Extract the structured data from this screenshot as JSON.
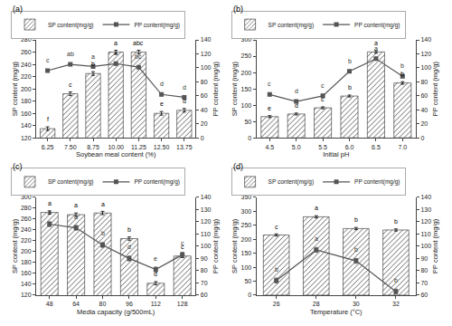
{
  "chart_data": [
    {
      "type": "bar",
      "title": "(a)",
      "xlabel": "Soybean meal content (%)",
      "ylabel": "SP content (mg/g)",
      "y2label": "PP content (mg/g)",
      "categories": [
        "6.25",
        "7.50",
        "8.75",
        "10.00",
        "11.25",
        "12.50",
        "13.75"
      ],
      "series": [
        {
          "name": "SP content(mg/g)",
          "type": "bar",
          "color": "#d9d9d9",
          "values": [
            135,
            192,
            225,
            260,
            260,
            160,
            165
          ],
          "errors": [
            3,
            3,
            3,
            3,
            3,
            3,
            3
          ],
          "annotations": [
            "f",
            "c",
            "b",
            "a",
            "abc",
            "e",
            "d"
          ]
        },
        {
          "name": "PP content(mg/g)",
          "type": "line",
          "axis": "y2",
          "color": "#555555",
          "marker": "square",
          "values": [
            96,
            105,
            102,
            106,
            101,
            62,
            58
          ],
          "errors": [
            2,
            2,
            2,
            2,
            2,
            2,
            2
          ],
          "annotations": [
            "c",
            "ab",
            "a",
            "a",
            "bc",
            "d",
            "d"
          ]
        }
      ],
      "ylim": [
        120,
        280
      ],
      "yticks": [
        120,
        140,
        160,
        180,
        200,
        220,
        240,
        260,
        280
      ],
      "y2lim": [
        0,
        140
      ],
      "y2ticks": [
        0,
        20,
        40,
        60,
        80,
        100,
        120,
        140
      ],
      "legend": "upper left",
      "grid": false
    },
    {
      "type": "bar",
      "title": "(b)",
      "xlabel": "Initial pH",
      "ylabel": "SP content (mg/g)",
      "y2label": "PP content (mg/g)",
      "categories": [
        "4.5",
        "5.0",
        "5.5",
        "6.0",
        "6.5",
        "7.0"
      ],
      "series": [
        {
          "name": "SP content(mg/g)",
          "type": "bar",
          "color": "#d9d9d9",
          "values": [
            65,
            73,
            92,
            128,
            263,
            168
          ],
          "errors": [
            3,
            3,
            3,
            3,
            4,
            4
          ],
          "annotations": [
            "e",
            "d",
            "c",
            "b",
            "a",
            "b"
          ]
        },
        {
          "name": "PP content(mg/g)",
          "type": "line",
          "axis": "y2",
          "color": "#555555",
          "marker": "square",
          "values": [
            62,
            52,
            60,
            95,
            113,
            88
          ],
          "errors": [
            2,
            2,
            2,
            2,
            2,
            2
          ],
          "annotations": [
            "c",
            "d",
            "c",
            "b",
            "a",
            "b"
          ]
        }
      ],
      "ylim": [
        0,
        300
      ],
      "yticks": [
        0,
        50,
        100,
        150,
        200,
        250,
        300
      ],
      "y2lim": [
        0,
        140
      ],
      "y2ticks": [
        0,
        20,
        40,
        60,
        80,
        100,
        120,
        140
      ],
      "legend": "upper left",
      "grid": false
    },
    {
      "type": "bar",
      "title": "(c)",
      "xlabel": "Media capacity (g/500mL)",
      "ylabel": "SP content (mg/g)",
      "y2label": "PP content (mg/g)",
      "categories": [
        "48",
        "64",
        "80",
        "96",
        "112",
        "128"
      ],
      "series": [
        {
          "name": "SP content(mg/g)",
          "type": "bar",
          "color": "#d9d9d9",
          "values": [
            272,
            268,
            271,
            224,
            142,
            192
          ],
          "errors": [
            3,
            3,
            3,
            3,
            3,
            3
          ],
          "annotations": [
            "a",
            "a",
            "a",
            "b",
            "d",
            "c"
          ]
        },
        {
          "name": "PP content(mg/g)",
          "type": "line",
          "axis": "y2",
          "color": "#555555",
          "marker": "square",
          "values": [
            118,
            115,
            101,
            90,
            81,
            93
          ],
          "errors": [
            2,
            2,
            2,
            2,
            2,
            2
          ],
          "annotations": [
            "a",
            "a",
            "b",
            "d",
            "e",
            "c"
          ]
        }
      ],
      "ylim": [
        120,
        300
      ],
      "yticks": [
        120,
        140,
        160,
        180,
        200,
        220,
        240,
        260,
        280,
        300
      ],
      "y2lim": [
        60,
        140
      ],
      "y2ticks": [
        60,
        70,
        80,
        90,
        100,
        110,
        120,
        130,
        140
      ],
      "legend": "upper left",
      "grid": false
    },
    {
      "type": "bar",
      "title": "(d)",
      "xlabel": "Temperature (°C)",
      "ylabel": "SP content (mg/g)",
      "y2label": "PP content (mg/g)",
      "categories": [
        "26",
        "28",
        "30",
        "32"
      ],
      "series": [
        {
          "name": "SP content(mg/g)",
          "type": "bar",
          "color": "#d9d9d9",
          "values": [
            215,
            280,
            238,
            233
          ],
          "errors": [
            4,
            4,
            4,
            4
          ],
          "annotations": [
            "c",
            "a",
            "b",
            "b"
          ]
        },
        {
          "name": "PP content(mg/g)",
          "type": "line",
          "axis": "y2",
          "color": "#555555",
          "marker": "square",
          "values": [
            72,
            97,
            88,
            63
          ],
          "errors": [
            2,
            2,
            2,
            2
          ],
          "annotations": [
            "b",
            "a",
            "b",
            "b"
          ]
        }
      ],
      "ylim": [
        0,
        350
      ],
      "yticks": [
        0,
        50,
        100,
        150,
        200,
        250,
        300,
        350
      ],
      "y2lim": [
        60,
        140
      ],
      "y2ticks": [
        60,
        70,
        80,
        90,
        100,
        110,
        120,
        130,
        140
      ],
      "legend": "upper left",
      "grid": false
    }
  ]
}
